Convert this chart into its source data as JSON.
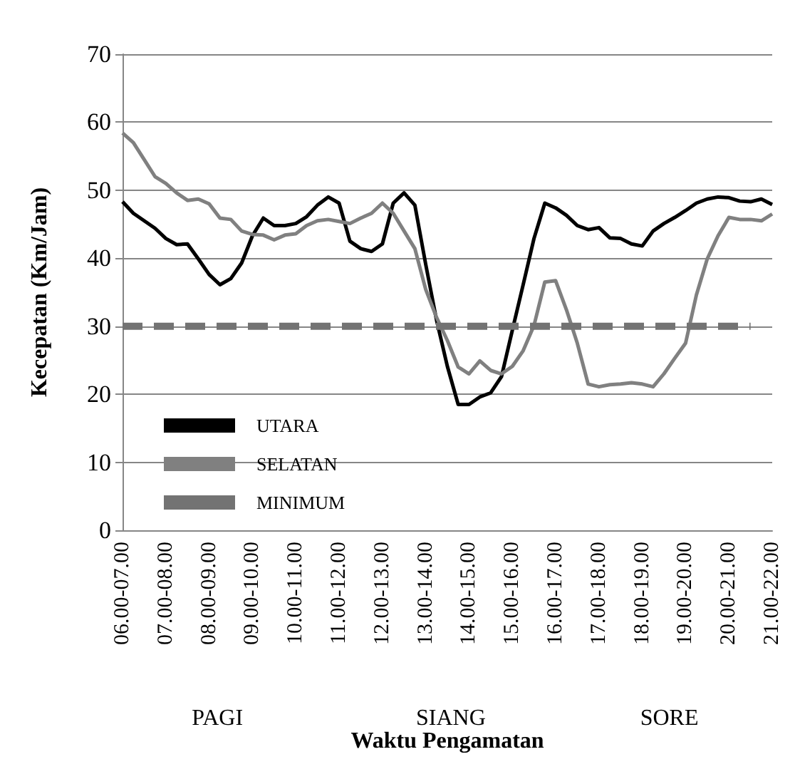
{
  "chart_data": {
    "type": "line",
    "xlabel": "Waktu Pengamatan",
    "ylabel": "Kecepatan (Km/Jam)",
    "categories": [
      "06.00-07.00",
      null,
      null,
      null,
      "07.00-08.00",
      null,
      null,
      null,
      "08.00-09.00",
      null,
      null,
      null,
      "09.00-10.00",
      null,
      null,
      null,
      "10.00-11.00",
      null,
      null,
      null,
      "11.00-12.00",
      null,
      null,
      null,
      "12.00-13.00",
      null,
      null,
      null,
      "13.00-14.00",
      null,
      null,
      null,
      "14.00-15.00",
      null,
      null,
      null,
      "15.00-16.00",
      null,
      null,
      null,
      "16.00-17.00",
      null,
      null,
      null,
      "17.00-18.00",
      null,
      null,
      null,
      "18.00-19.00",
      null,
      null,
      null,
      "19.00-20.00",
      null,
      null,
      null,
      "20.00-21.00",
      null,
      null,
      null,
      "21.00-22.00"
    ],
    "series": [
      {
        "name": "UTARA",
        "color": "#000000",
        "line_style": "solid",
        "values": [
          48.3,
          46.6,
          45.5,
          44.4,
          42.9,
          42.0,
          42.1,
          39.9,
          37.6,
          36.1,
          37.0,
          39.3,
          43.3,
          45.9,
          44.8,
          44.8,
          45.1,
          46.1,
          47.8,
          49.0,
          48.1,
          42.5,
          41.4,
          41.0,
          42.1,
          48.1,
          49.6,
          47.8,
          39.1,
          30.9,
          24.1,
          18.5,
          18.5,
          19.6,
          20.2,
          22.6,
          29.4,
          36.1,
          42.9,
          48.1,
          47.4,
          46.3,
          44.8,
          44.2,
          44.5,
          43.0,
          42.9,
          42.1,
          41.8,
          44.0,
          45.1,
          46.0,
          47.0,
          48.1,
          48.7,
          49.0,
          48.9,
          48.4,
          48.3,
          48.7,
          47.9
        ]
      },
      {
        "name": "SELATAN",
        "color": "#808080",
        "line_style": "solid",
        "values": [
          58.4,
          57.0,
          54.5,
          52.0,
          51.0,
          49.6,
          48.5,
          48.7,
          48.0,
          45.9,
          45.7,
          44.0,
          43.5,
          43.4,
          42.7,
          43.4,
          43.6,
          44.8,
          45.5,
          45.7,
          45.4,
          45.1,
          45.9,
          46.6,
          48.1,
          46.6,
          44.0,
          41.4,
          35.4,
          31.3,
          27.9,
          24.0,
          23.0,
          24.9,
          23.5,
          23.0,
          24.1,
          26.4,
          30.1,
          36.5,
          36.7,
          32.4,
          27.5,
          21.5,
          21.1,
          21.4,
          21.5,
          21.7,
          21.5,
          21.1,
          23.0,
          25.3,
          27.5,
          34.6,
          39.9,
          43.3,
          46.0,
          45.7,
          45.7,
          45.5,
          46.5
        ]
      },
      {
        "name": "MINIMUM",
        "color": "#737373",
        "line_style": "dashed",
        "values": [
          30,
          30,
          30,
          30,
          30,
          30,
          30,
          30,
          30,
          30,
          30,
          30,
          30,
          30,
          30,
          30,
          30,
          30,
          30,
          30,
          30,
          30,
          30,
          30,
          30,
          30,
          30,
          30,
          30,
          30,
          30,
          30,
          30,
          30,
          30,
          30,
          30,
          30,
          30,
          30,
          30,
          30,
          30,
          30,
          30,
          30,
          30,
          30,
          30,
          30,
          30,
          30,
          30,
          30,
          30,
          30,
          30,
          30,
          30,
          null,
          null
        ]
      }
    ],
    "ylim": [
      0,
      70
    ],
    "yticks": [
      0,
      10,
      20,
      30,
      40,
      50,
      60,
      70
    ],
    "grid": "y",
    "legend": "bottom left",
    "marker": "none",
    "annotations": [
      "PAGI",
      "SIANG",
      "SORE"
    ]
  }
}
